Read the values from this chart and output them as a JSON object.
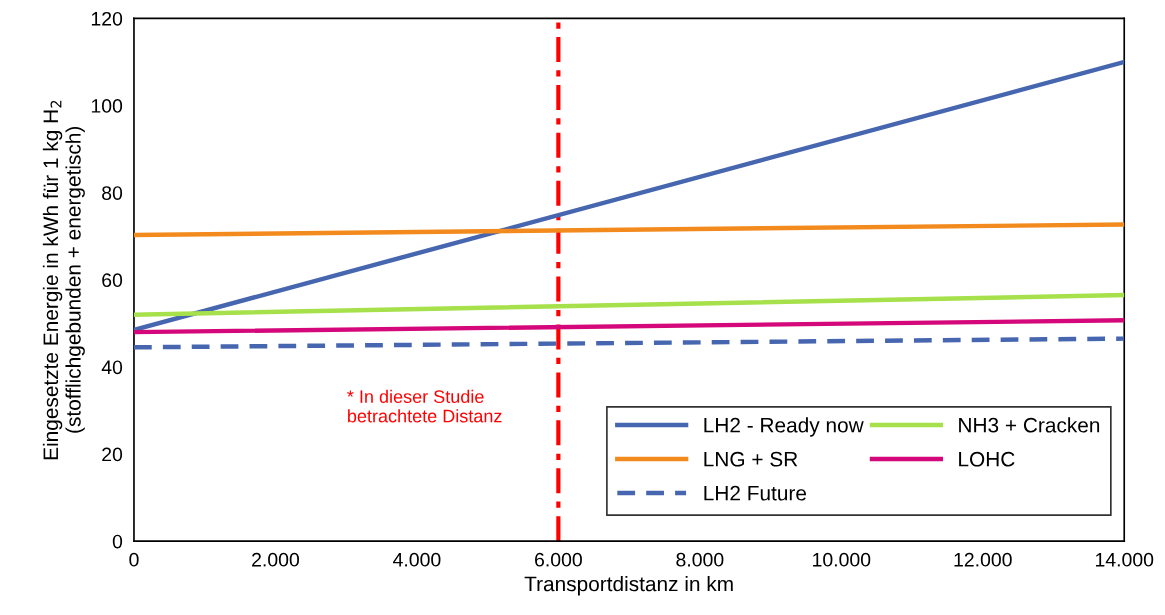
{
  "chart_data": {
    "type": "line",
    "xlabel": "Transportdistanz in km",
    "ylabel": "Eingesetzte Energie in kWh für 1 kg H$_{2}$\n(stofflichgebunden + energetisch)",
    "x": [
      0,
      14000
    ],
    "series": [
      {
        "name": "LH2 - Ready now",
        "color": "#4766b0",
        "values": [
          48.5,
          110
        ],
        "line_style": "solid"
      },
      {
        "name": "LNG + SR",
        "color": "#f28a1e",
        "values": [
          70.3,
          72.7
        ],
        "line_style": "solid"
      },
      {
        "name": "LH2 Future",
        "color": "#4766b0",
        "values": [
          44.5,
          46.5
        ],
        "line_style": "dashed"
      },
      {
        "name": "NH3 + Cracken",
        "color": "#a6e04a",
        "values": [
          52,
          56.5
        ],
        "line_style": "solid"
      },
      {
        "name": "LOHC",
        "color": "#d4087a",
        "values": [
          48,
          50.7
        ],
        "line_style": "solid"
      }
    ],
    "xlim": [
      0,
      14000
    ],
    "xticks": [
      0,
      {
        "value": 2000,
        "label": "2.000"
      },
      {
        "value": 4000,
        "label": "4.000"
      },
      {
        "value": 6000,
        "label": "6.000"
      },
      {
        "value": 8000,
        "label": "8.000"
      },
      {
        "value": 10000,
        "label": "10.000"
      },
      {
        "value": 12000,
        "label": "12.000"
      },
      {
        "value": 14000,
        "label": "14.000"
      }
    ],
    "ylim": [
      0,
      120
    ],
    "yticks": [
      0,
      20,
      40,
      60,
      80,
      100,
      120
    ],
    "ref_lines": [
      {
        "axis": "x",
        "value": 6000,
        "color": "#ff0000",
        "line_style": "dashdot"
      }
    ],
    "annotations": [
      "* In dieser Studie\nbetrachtete Distanz"
    ],
    "legend": "bottom right",
    "grid": false,
    "marker": "none"
  }
}
